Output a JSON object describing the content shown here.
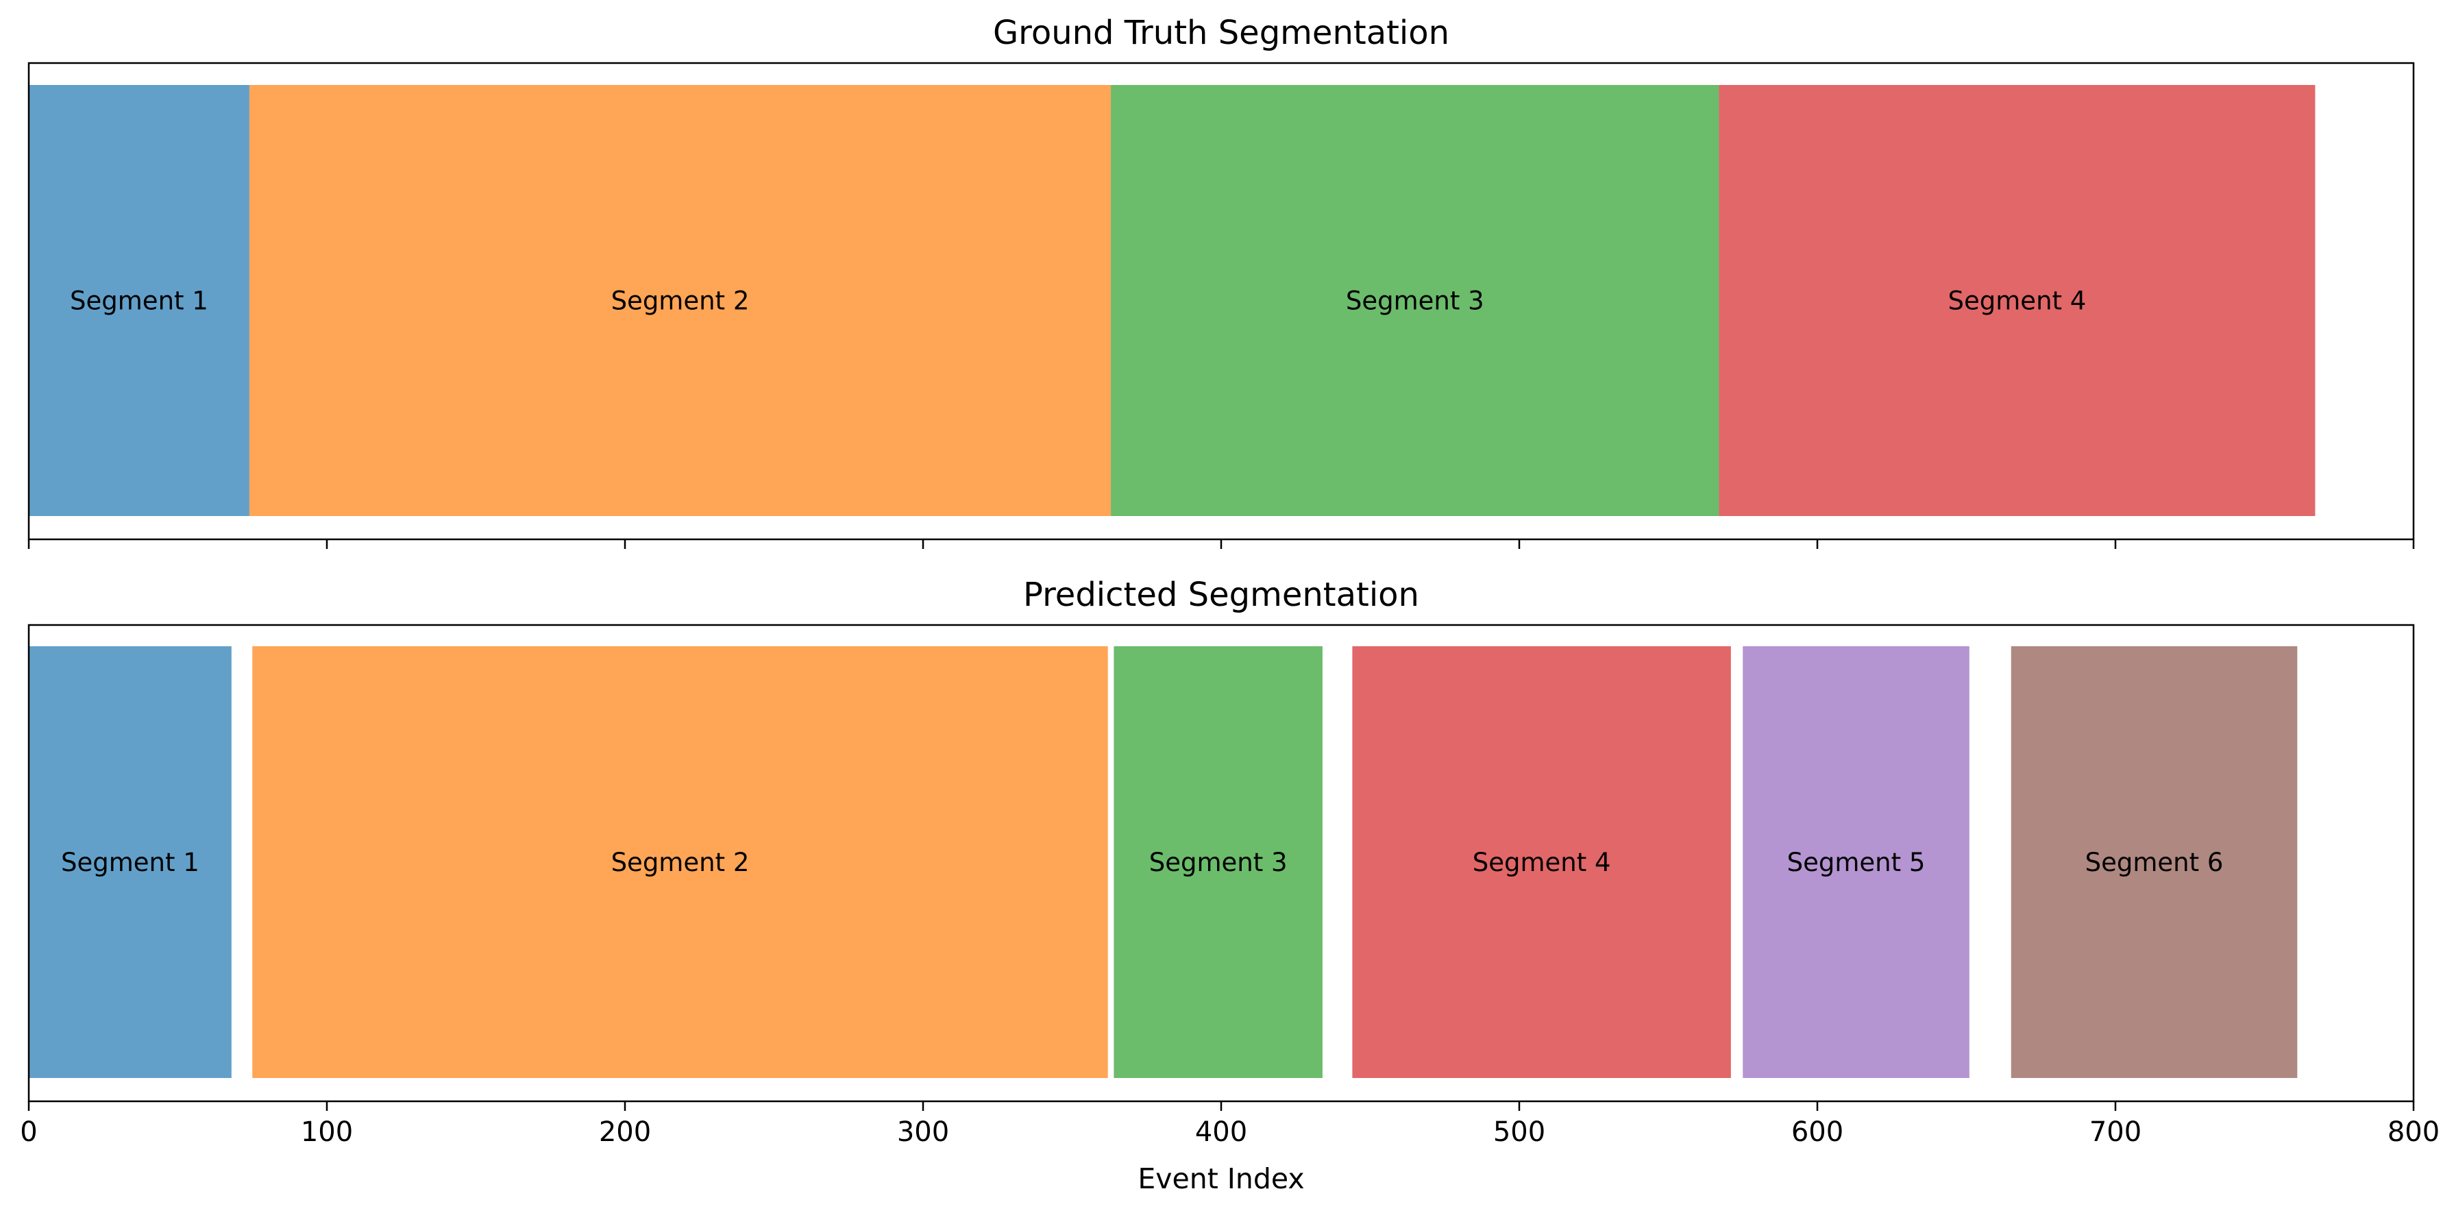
{
  "chart_data": [
    {
      "type": "bar",
      "orientation": "horizontal-timeline",
      "title": "Ground Truth Segmentation",
      "xlabel": "",
      "ylabel": "",
      "xlim": [
        0,
        800
      ],
      "xticks": [
        0,
        100,
        200,
        300,
        400,
        500,
        600,
        700,
        800
      ],
      "show_tick_labels": false,
      "grid": false,
      "segments": [
        {
          "label": "Segment 1",
          "start": 0,
          "end": 74,
          "color": "#1f77b4"
        },
        {
          "label": "Segment 2",
          "start": 74,
          "end": 363,
          "color": "#ff7f0e"
        },
        {
          "label": "Segment 3",
          "start": 363,
          "end": 567,
          "color": "#2ca02c"
        },
        {
          "label": "Segment 4",
          "start": 567,
          "end": 767,
          "color": "#d62728"
        }
      ]
    },
    {
      "type": "bar",
      "orientation": "horizontal-timeline",
      "title": "Predicted Segmentation",
      "xlabel": "Event Index",
      "ylabel": "",
      "xlim": [
        0,
        800
      ],
      "xticks": [
        0,
        100,
        200,
        300,
        400,
        500,
        600,
        700,
        800
      ],
      "xtick_labels": [
        "0",
        "100",
        "200",
        "300",
        "400",
        "500",
        "600",
        "700",
        "800"
      ],
      "show_tick_labels": true,
      "grid": false,
      "segments": [
        {
          "label": "Segment 1",
          "start": 0,
          "end": 68,
          "color": "#1f77b4"
        },
        {
          "label": "Segment 2",
          "start": 75,
          "end": 362,
          "color": "#ff7f0e"
        },
        {
          "label": "Segment 3",
          "start": 364,
          "end": 434,
          "color": "#2ca02c"
        },
        {
          "label": "Segment 4",
          "start": 444,
          "end": 571,
          "color": "#d62728"
        },
        {
          "label": "Segment 5",
          "start": 575,
          "end": 651,
          "color": "#9467bd"
        },
        {
          "label": "Segment 6",
          "start": 665,
          "end": 761,
          "color": "#8c564b"
        }
      ]
    }
  ]
}
